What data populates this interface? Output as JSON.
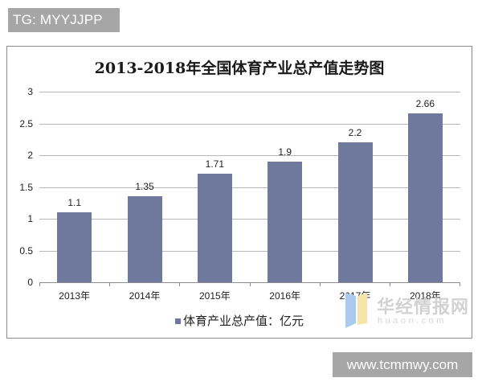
{
  "badges": {
    "top_left": "TG: MYYJJPP",
    "bottom_right": "www.tcmmwy.com"
  },
  "watermark": {
    "text": "华经情报网",
    "subtext": "huaon.com"
  },
  "legend": {
    "label": "体育产业总产值：亿元"
  },
  "colors": {
    "bar": "#6f789d",
    "grid": "#b8b8b8",
    "badge_bg": "#a6a6a6"
  },
  "chart_data": {
    "type": "bar",
    "title": "2013-2018年全国体育产业总产值走势图",
    "categories": [
      "2013年",
      "2014年",
      "2015年",
      "2016年",
      "2017年",
      "2018年"
    ],
    "series": [
      {
        "name": "体育产业总产值：亿元",
        "values": [
          1.1,
          1.35,
          1.71,
          1.9,
          2.2,
          2.66
        ]
      }
    ],
    "value_labels": [
      "1.1",
      "1.35",
      "1.71",
      "1.9",
      "2.2",
      "2.66"
    ],
    "xlabel": "",
    "ylabel": "",
    "ylim": [
      0,
      3
    ],
    "yticks": [
      "0",
      "0.5",
      "1",
      "1.5",
      "2",
      "2.5",
      "3"
    ],
    "grid": true,
    "legend_position": "bottom"
  }
}
